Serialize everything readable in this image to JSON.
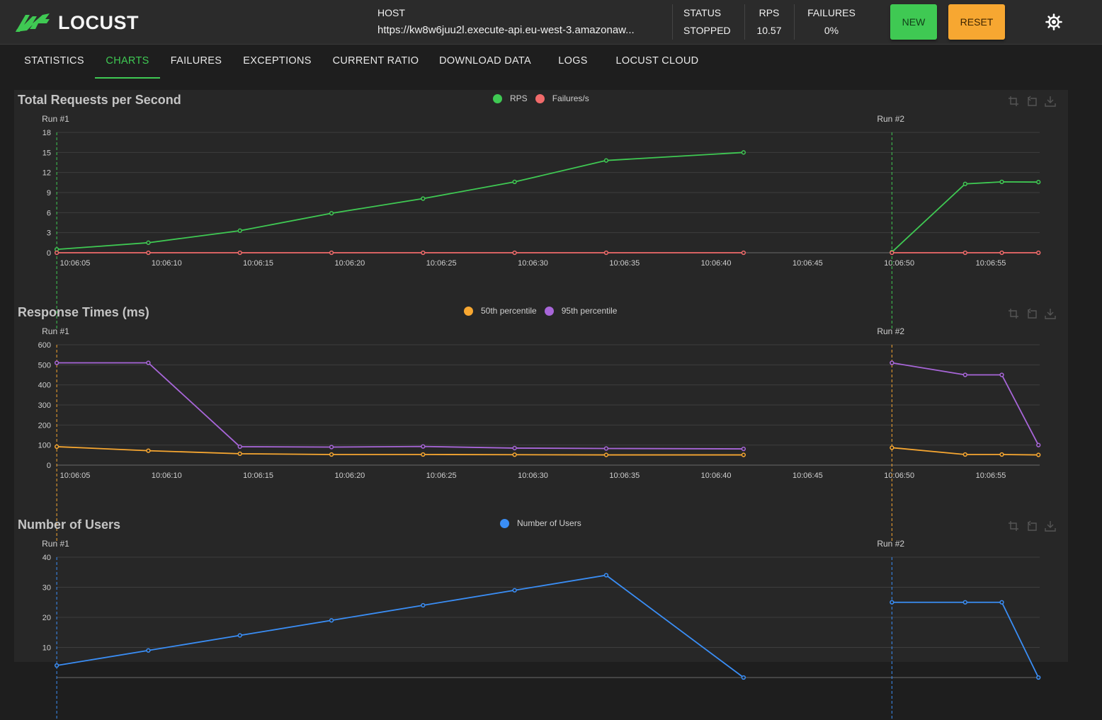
{
  "app": {
    "name": "LOCUST"
  },
  "header": {
    "host_label": "HOST",
    "host_value": "https://kw8w6juu2l.execute-api.eu-west-3.amazonaw...",
    "status_label": "STATUS",
    "status_value": "STOPPED",
    "rps_label": "RPS",
    "rps_value": "10.57",
    "failures_label": "FAILURES",
    "failures_value": "0%",
    "new_button": "NEW",
    "reset_button": "RESET"
  },
  "tabs": [
    {
      "label": "STATISTICS"
    },
    {
      "label": "CHARTS"
    },
    {
      "label": "FAILURES"
    },
    {
      "label": "EXCEPTIONS"
    },
    {
      "label": "CURRENT RATIO"
    },
    {
      "label": "DOWNLOAD DATA"
    },
    {
      "label": "LOGS"
    },
    {
      "label": "LOCUST CLOUD"
    }
  ],
  "active_tab": "CHARTS",
  "colors": {
    "green": "#3fc953",
    "red": "#f16b6b",
    "orange": "#f7a731",
    "purple": "#a866d9",
    "blue": "#3a8ef6"
  },
  "chart_data": [
    {
      "type": "line",
      "title": "Total Requests per Second",
      "markers": [
        "Run #1",
        "Run #2"
      ],
      "x_ticks": [
        "10:06:05",
        "10:06:10",
        "10:06:15",
        "10:06:20",
        "10:06:25",
        "10:06:30",
        "10:06:35",
        "10:06:40",
        "10:06:45",
        "10:06:50",
        "10:06:55"
      ],
      "ylim": [
        0,
        18
      ],
      "y_ticks": [
        0,
        3,
        6,
        9,
        12,
        15,
        18
      ],
      "series": [
        {
          "name": "RPS",
          "color": "#3fc953",
          "points": [
            [
              4,
              0.5
            ],
            [
              9,
              1.5
            ],
            [
              14,
              3.3
            ],
            [
              19,
              5.9
            ],
            [
              24,
              8.1
            ],
            [
              29,
              10.6
            ],
            [
              34,
              13.8
            ],
            [
              41.5,
              15.0
            ],
            null,
            [
              49.6,
              0.1
            ],
            [
              53.6,
              10.3
            ],
            [
              55.6,
              10.6
            ],
            [
              57.6,
              10.57
            ]
          ]
        },
        {
          "name": "Failures/s",
          "color": "#f16b6b",
          "points": [
            [
              4,
              0
            ],
            [
              9,
              0
            ],
            [
              14,
              0
            ],
            [
              19,
              0
            ],
            [
              24,
              0
            ],
            [
              29,
              0
            ],
            [
              34,
              0
            ],
            [
              41.5,
              0
            ],
            null,
            [
              49.6,
              0
            ],
            [
              53.6,
              0
            ],
            [
              55.6,
              0
            ],
            [
              57.6,
              0
            ]
          ]
        }
      ]
    },
    {
      "type": "line",
      "title": "Response Times (ms)",
      "markers": [
        "Run #1",
        "Run #2"
      ],
      "x_ticks": [
        "10:06:05",
        "10:06:10",
        "10:06:15",
        "10:06:20",
        "10:06:25",
        "10:06:30",
        "10:06:35",
        "10:06:40",
        "10:06:45",
        "10:06:50",
        "10:06:55"
      ],
      "ylim": [
        0,
        600
      ],
      "y_ticks": [
        0,
        100,
        200,
        300,
        400,
        500,
        600
      ],
      "series": [
        {
          "name": "50th percentile",
          "color": "#f7a731",
          "points": [
            [
              4,
              92
            ],
            [
              9,
              72
            ],
            [
              14,
              57
            ],
            [
              19,
              53
            ],
            [
              24,
              53
            ],
            [
              29,
              52
            ],
            [
              34,
              51
            ],
            [
              41.5,
              51
            ],
            null,
            [
              49.6,
              87
            ],
            [
              53.6,
              53
            ],
            [
              55.6,
              53
            ],
            [
              57.6,
              51
            ]
          ]
        },
        {
          "name": "95th percentile",
          "color": "#a866d9",
          "points": [
            [
              4,
              510
            ],
            [
              9,
              510
            ],
            [
              14,
              92
            ],
            [
              19,
              90
            ],
            [
              24,
              93
            ],
            [
              29,
              85
            ],
            [
              34,
              83
            ],
            [
              41.5,
              81
            ],
            null,
            [
              49.6,
              510
            ],
            [
              53.6,
              450
            ],
            [
              55.6,
              450
            ],
            [
              57.6,
              100
            ]
          ]
        }
      ]
    },
    {
      "type": "line",
      "title": "Number of Users",
      "markers": [
        "Run #1",
        "Run #2"
      ],
      "x_ticks": [],
      "ylim": [
        0,
        40
      ],
      "y_ticks": [
        10,
        20,
        30,
        40
      ],
      "series": [
        {
          "name": "Number of Users",
          "color": "#3a8ef6",
          "points": [
            [
              4,
              4
            ],
            [
              9,
              9
            ],
            [
              14,
              14
            ],
            [
              19,
              19
            ],
            [
              24,
              24
            ],
            [
              29,
              29
            ],
            [
              34,
              34
            ],
            [
              41.5,
              0
            ],
            null,
            [
              49.6,
              25
            ],
            [
              53.6,
              25
            ],
            [
              55.6,
              25
            ],
            [
              57.6,
              0
            ]
          ]
        }
      ]
    }
  ]
}
